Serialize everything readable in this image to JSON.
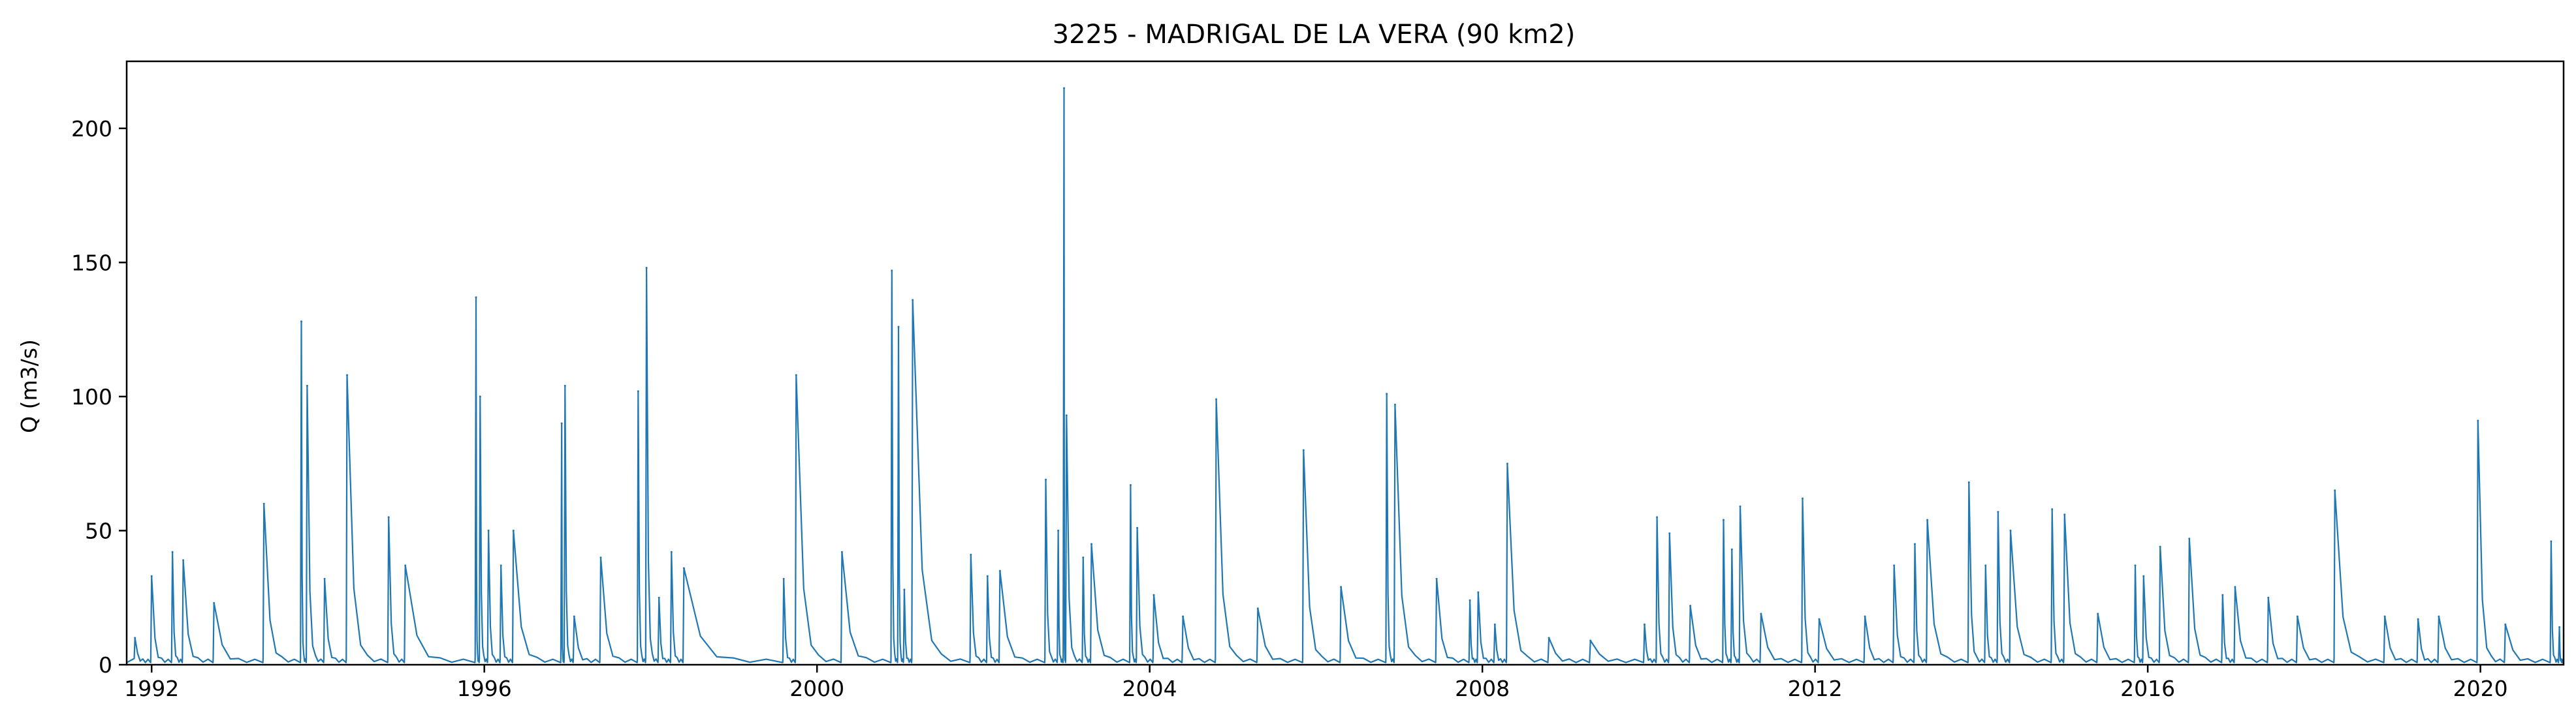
{
  "chart_data": {
    "type": "line",
    "title": "3225 - MADRIGAL DE LA VERA (90 km2)",
    "xlabel": "",
    "ylabel": "Q (m3/s)",
    "xlim": [
      1991.7,
      2021.0
    ],
    "ylim": [
      0,
      225
    ],
    "x_ticks": [
      1992,
      1996,
      2000,
      2004,
      2008,
      2012,
      2016,
      2020
    ],
    "x_tick_labels": [
      "1992",
      "1996",
      "2000",
      "2004",
      "2008",
      "2012",
      "2016",
      "2020"
    ],
    "y_ticks": [
      0,
      50,
      100,
      150,
      200
    ],
    "y_tick_labels": [
      "0",
      "50",
      "100",
      "150",
      "200"
    ],
    "grid": false,
    "series": [
      {
        "color": "#1f77b4",
        "peaks": [
          [
            1991.8,
            10
          ],
          [
            1992.0,
            33
          ],
          [
            1992.25,
            42
          ],
          [
            1992.38,
            39
          ],
          [
            1992.75,
            23
          ],
          [
            1993.35,
            60
          ],
          [
            1993.8,
            128
          ],
          [
            1993.87,
            104
          ],
          [
            1994.08,
            32
          ],
          [
            1994.35,
            108
          ],
          [
            1994.85,
            55
          ],
          [
            1995.05,
            37
          ],
          [
            1995.9,
            137
          ],
          [
            1995.95,
            100
          ],
          [
            1996.05,
            50
          ],
          [
            1996.2,
            37
          ],
          [
            1996.35,
            50
          ],
          [
            1996.93,
            90
          ],
          [
            1996.97,
            104
          ],
          [
            1997.08,
            18
          ],
          [
            1997.4,
            40
          ],
          [
            1997.85,
            102
          ],
          [
            1997.95,
            148
          ],
          [
            1998.1,
            25
          ],
          [
            1998.25,
            42
          ],
          [
            1998.4,
            36
          ],
          [
            1999.6,
            32
          ],
          [
            1999.75,
            108
          ],
          [
            2000.3,
            42
          ],
          [
            2000.9,
            147
          ],
          [
            2000.98,
            126
          ],
          [
            2001.05,
            28
          ],
          [
            2001.15,
            136
          ],
          [
            2001.85,
            41
          ],
          [
            2002.05,
            33
          ],
          [
            2002.2,
            35
          ],
          [
            2002.75,
            69
          ],
          [
            2002.9,
            50
          ],
          [
            2002.97,
            215
          ],
          [
            2003.0,
            93
          ],
          [
            2003.2,
            40
          ],
          [
            2003.3,
            45
          ],
          [
            2003.77,
            67
          ],
          [
            2003.85,
            51
          ],
          [
            2004.05,
            26
          ],
          [
            2004.4,
            18
          ],
          [
            2004.8,
            99
          ],
          [
            2005.3,
            21
          ],
          [
            2005.85,
            80
          ],
          [
            2006.3,
            29
          ],
          [
            2006.85,
            101
          ],
          [
            2006.95,
            97
          ],
          [
            2007.45,
            32
          ],
          [
            2007.85,
            24
          ],
          [
            2007.95,
            27
          ],
          [
            2008.15,
            15
          ],
          [
            2008.3,
            75
          ],
          [
            2008.8,
            10
          ],
          [
            2009.3,
            9
          ],
          [
            2009.95,
            15
          ],
          [
            2010.1,
            55
          ],
          [
            2010.25,
            49
          ],
          [
            2010.5,
            22
          ],
          [
            2010.9,
            54
          ],
          [
            2011.0,
            43
          ],
          [
            2011.1,
            59
          ],
          [
            2011.35,
            19
          ],
          [
            2011.85,
            62
          ],
          [
            2012.05,
            17
          ],
          [
            2012.6,
            18
          ],
          [
            2012.95,
            37
          ],
          [
            2013.2,
            45
          ],
          [
            2013.35,
            54
          ],
          [
            2013.85,
            68
          ],
          [
            2014.05,
            37
          ],
          [
            2014.2,
            57
          ],
          [
            2014.35,
            50
          ],
          [
            2014.85,
            58
          ],
          [
            2015.0,
            56
          ],
          [
            2015.4,
            19
          ],
          [
            2015.85,
            37
          ],
          [
            2015.95,
            33
          ],
          [
            2016.15,
            44
          ],
          [
            2016.5,
            47
          ],
          [
            2016.9,
            26
          ],
          [
            2017.05,
            29
          ],
          [
            2017.45,
            25
          ],
          [
            2017.8,
            18
          ],
          [
            2018.25,
            65
          ],
          [
            2018.85,
            18
          ],
          [
            2019.25,
            17
          ],
          [
            2019.5,
            18
          ],
          [
            2019.97,
            91
          ],
          [
            2020.3,
            15
          ],
          [
            2020.85,
            46
          ],
          [
            2020.95,
            14
          ]
        ]
      }
    ]
  }
}
